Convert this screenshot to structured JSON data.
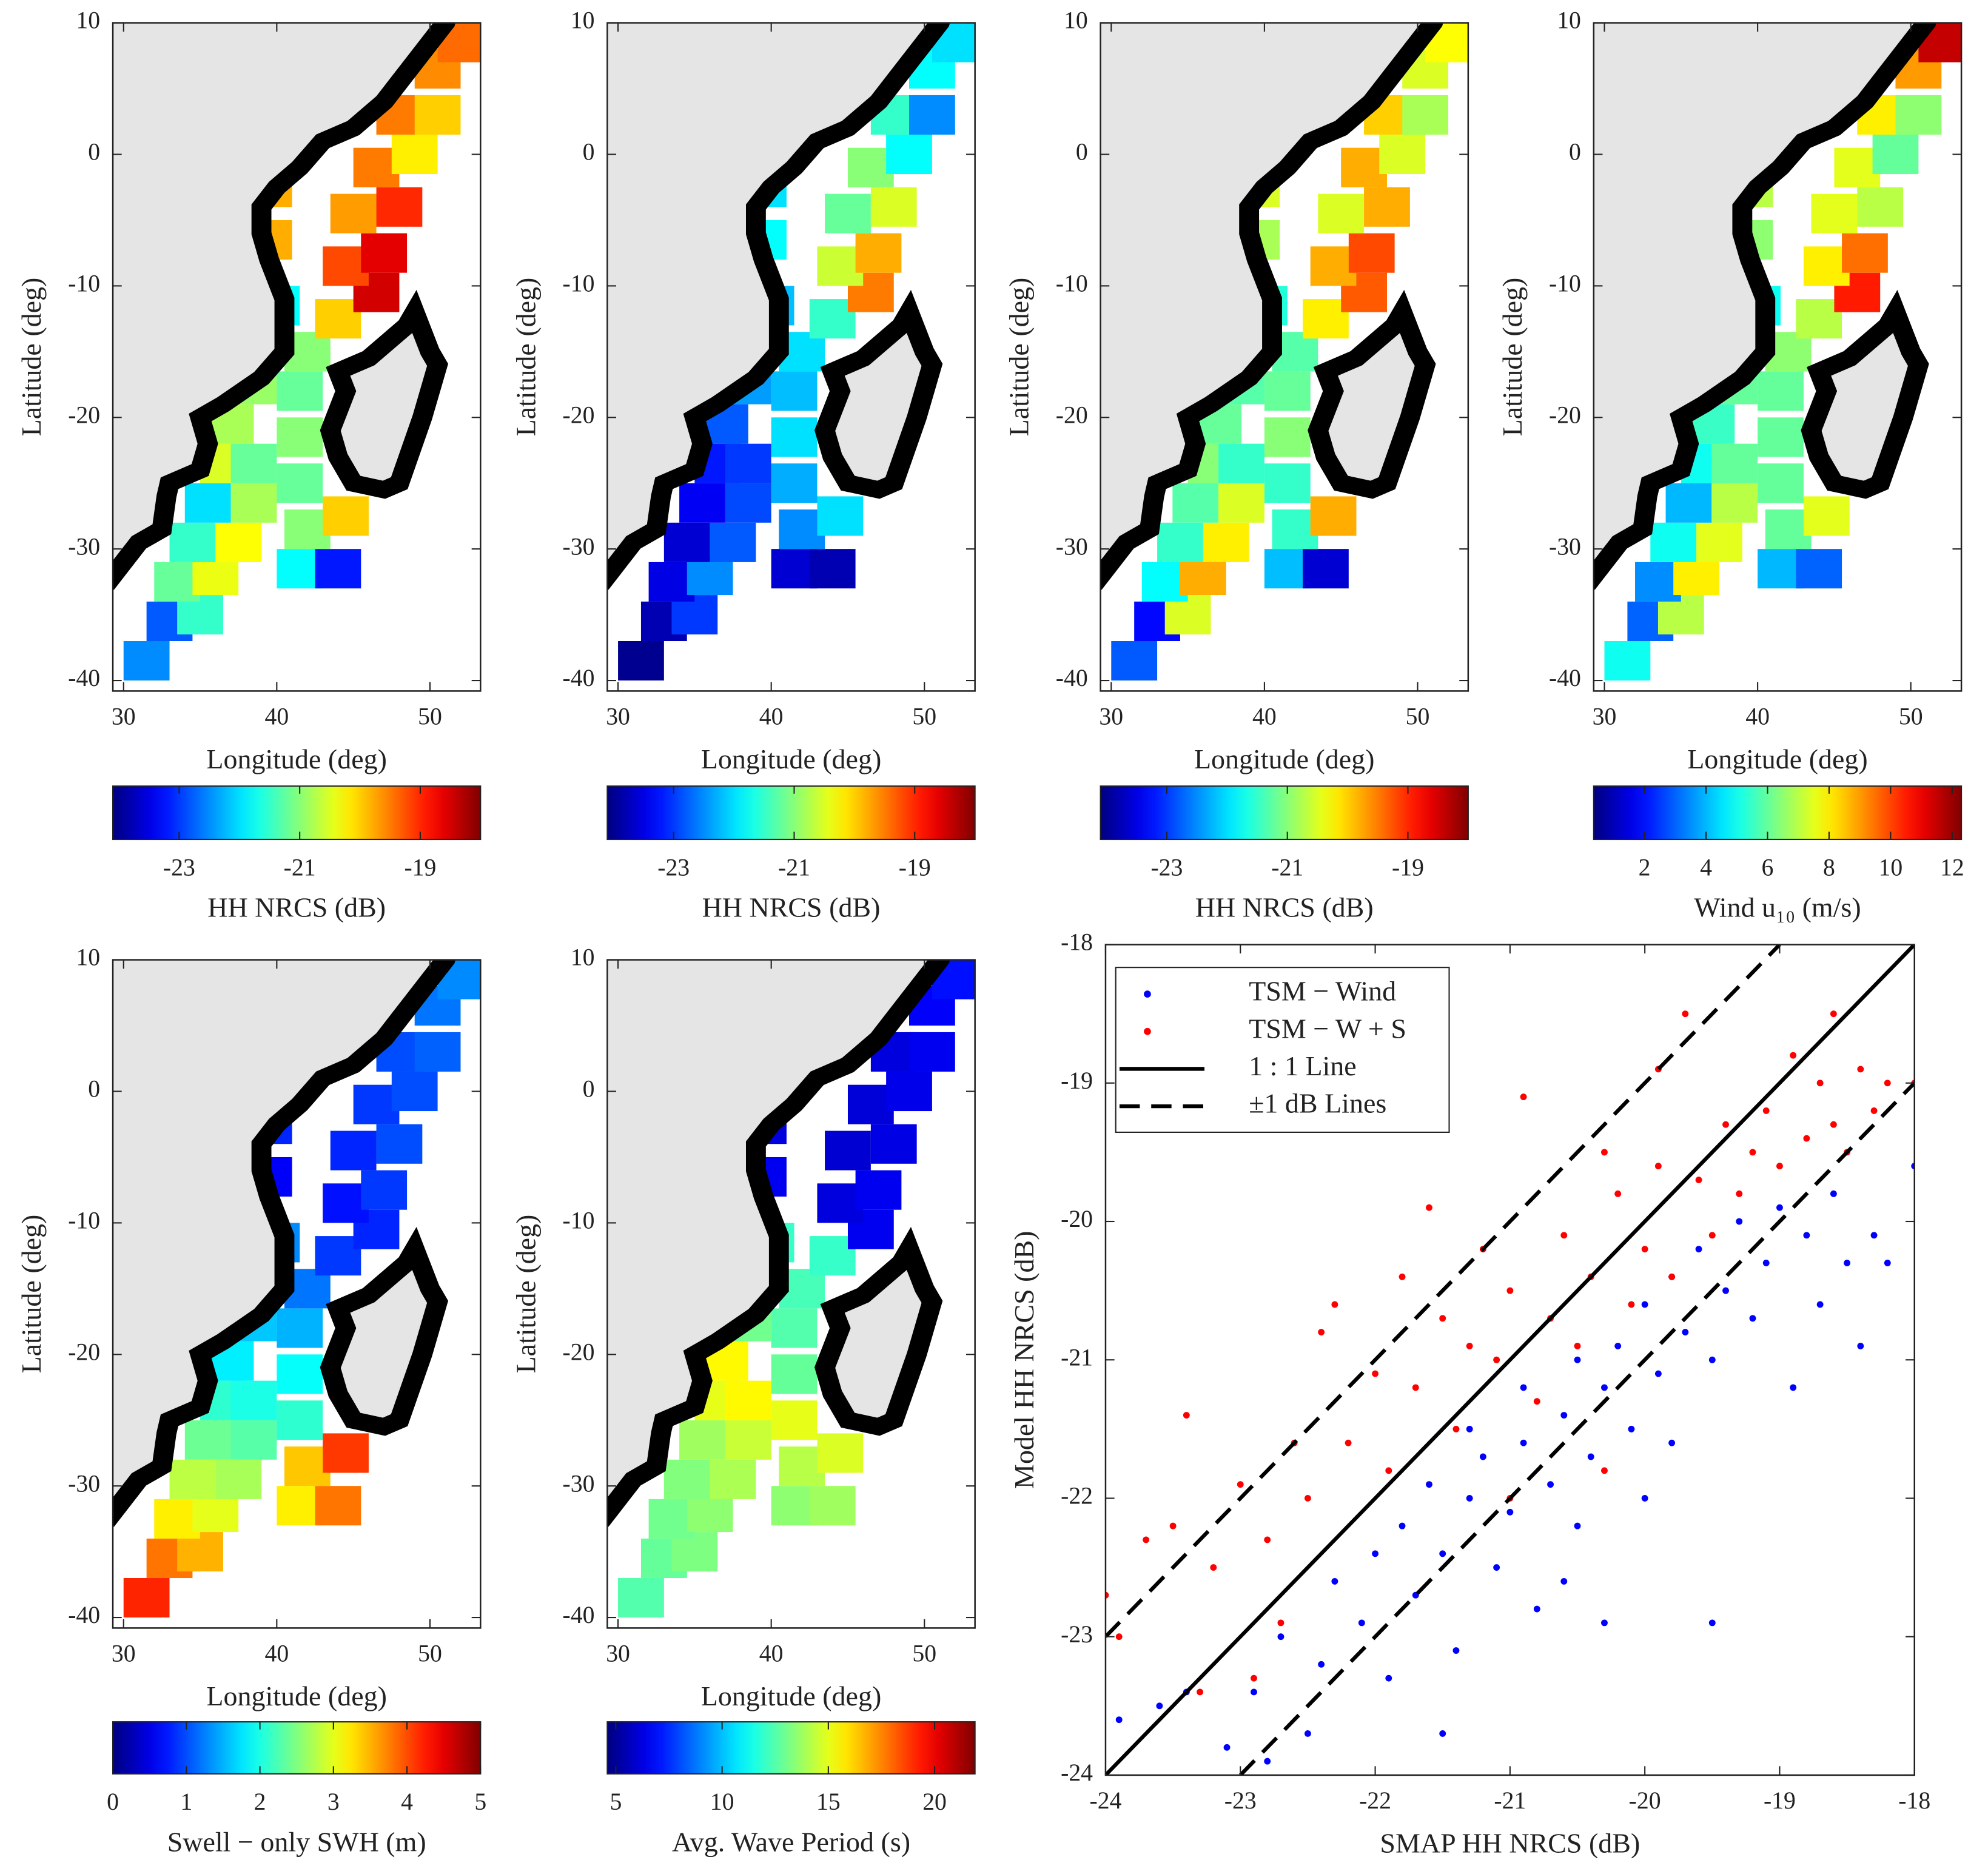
{
  "chart_data": [
    {
      "type": "heatmap",
      "xlabel": "Longitude (deg)",
      "ylabel": "Latitude (deg)",
      "xlim": [
        29.3,
        53.3
      ],
      "ylim": [
        -40.8,
        10
      ],
      "xticks": [
        30,
        40,
        50
      ],
      "yticks": [
        -40,
        -30,
        -20,
        -10,
        0,
        10
      ],
      "colormap": "jet",
      "x": [
        31.5,
        33,
        35,
        33.5,
        36,
        34.5,
        37.5,
        35.5,
        38.5,
        36.5,
        38.5,
        37,
        38.5,
        39.5,
        40,
        37.5,
        39.5,
        37.5,
        39.5,
        41.5,
        44,
        42,
        44.5,
        41.5,
        41.5,
        41.5,
        42,
        44,
        46.5,
        44.5,
        47,
        45,
        48,
        46.5,
        49,
        48,
        50.5,
        50.5,
        52
      ],
      "y": [
        -38.5,
        -35.5,
        -35,
        -32.5,
        -32,
        -29.5,
        -29.5,
        -26.5,
        -26.5,
        -23.5,
        -23.5,
        -20.5,
        -17.5,
        -14.5,
        -11.5,
        -6.5,
        -6.5,
        -2.5,
        -2.5,
        -31.5,
        -31.5,
        -28.5,
        -27.5,
        -25,
        -21.5,
        -18,
        -15,
        -12.5,
        -10.5,
        -8.5,
        -7.5,
        -4.5,
        -4,
        -1,
        0,
        3,
        3,
        6.5,
        8.5
      ],
      "values": [
        -22.5,
        -22.8,
        -21.5,
        -21.2,
        -20.4,
        -21.5,
        -20.3,
        -22.0,
        -20.8,
        -20.5,
        -21.2,
        -20.8,
        -20.9,
        -21.5,
        -21.8,
        -19.6,
        -19.8,
        -19.5,
        -19.8,
        -21.8,
        -23.2,
        -21.0,
        -20.0,
        -21.2,
        -21.0,
        -21.2,
        -21.0,
        -20.0,
        -18.5,
        -19.2,
        -18.6,
        -19.7,
        -19.0,
        -19.5,
        -20.2,
        -19.5,
        -20.0,
        -19.6,
        -19.4
      ],
      "colorbar": {
        "label": "HH NRCS (dB)",
        "clim": [
          -24.1,
          -18
        ],
        "ticks": [
          -23,
          -21,
          -19
        ]
      }
    },
    {
      "type": "heatmap",
      "xlabel": "Longitude (deg)",
      "ylabel": "Latitude (deg)",
      "xlim": [
        29.3,
        53.3
      ],
      "ylim": [
        -40.8,
        10
      ],
      "xticks": [
        30,
        40,
        50
      ],
      "yticks": [
        -40,
        -30,
        -20,
        -10,
        0,
        10
      ],
      "colormap": "jet",
      "x": [
        31.5,
        33,
        35,
        33.5,
        36,
        34.5,
        37.5,
        35.5,
        38.5,
        36.5,
        38.5,
        37,
        38.5,
        39.5,
        40,
        37.5,
        39.5,
        37.5,
        39.5,
        41.5,
        44,
        42,
        44.5,
        41.5,
        41.5,
        41.5,
        42,
        44,
        46.5,
        44.5,
        47,
        45,
        48,
        46.5,
        49,
        48,
        50.5,
        50.5,
        52
      ],
      "y": [
        -38.5,
        -35.5,
        -35,
        -32.5,
        -32,
        -29.5,
        -29.5,
        -26.5,
        -26.5,
        -23.5,
        -23.5,
        -20.5,
        -17.5,
        -14.5,
        -11.5,
        -6.5,
        -6.5,
        -2.5,
        -2.5,
        -31.5,
        -31.5,
        -28.5,
        -27.5,
        -25,
        -21.5,
        -18,
        -15,
        -12.5,
        -10.5,
        -8.5,
        -7.5,
        -4.5,
        -4,
        -1,
        0,
        3,
        3,
        6.5,
        8.5
      ],
      "values": [
        -24,
        -23.8,
        -23.0,
        -23.5,
        -22.5,
        -23.6,
        -22.8,
        -23.4,
        -22.9,
        -23.2,
        -23.0,
        -22.8,
        -22.4,
        -22.5,
        -22.2,
        -21.5,
        -21.8,
        -21.8,
        -22.0,
        -23.6,
        -23.8,
        -22.5,
        -22.0,
        -22.3,
        -22.0,
        -22.2,
        -22.0,
        -21.5,
        -19.5,
        -20.6,
        -19.8,
        -21.2,
        -20.5,
        -21.0,
        -21.8,
        -21.5,
        -22.5,
        -21.8,
        -22.0
      ],
      "colorbar": {
        "label": "HH NRCS (dB)",
        "clim": [
          -24.1,
          -18
        ],
        "ticks": [
          -23,
          -21,
          -19
        ]
      }
    },
    {
      "type": "heatmap",
      "xlabel": "Longitude (deg)",
      "ylabel": "Latitude (deg)",
      "xlim": [
        29.3,
        53.3
      ],
      "ylim": [
        -40.8,
        10
      ],
      "xticks": [
        30,
        40,
        50
      ],
      "yticks": [
        -40,
        -30,
        -20,
        -10,
        0,
        10
      ],
      "colormap": "jet",
      "x": [
        31.5,
        33,
        35,
        33.5,
        36,
        34.5,
        37.5,
        35.5,
        38.5,
        36.5,
        38.5,
        37,
        38.5,
        39.5,
        40,
        37.5,
        39.5,
        37.5,
        39.5,
        41.5,
        44,
        42,
        44.5,
        41.5,
        41.5,
        41.5,
        42,
        44,
        46.5,
        44.5,
        47,
        45,
        48,
        46.5,
        49,
        48,
        50.5,
        50.5,
        52
      ],
      "y": [
        -38.5,
        -35.5,
        -35,
        -32.5,
        -32,
        -29.5,
        -29.5,
        -26.5,
        -26.5,
        -23.5,
        -23.5,
        -20.5,
        -17.5,
        -14.5,
        -11.5,
        -6.5,
        -6.5,
        -2.5,
        -2.5,
        -31.5,
        -31.5,
        -28.5,
        -27.5,
        -25,
        -21.5,
        -18,
        -15,
        -12.5,
        -10.5,
        -8.5,
        -7.5,
        -4.5,
        -4,
        -1,
        0,
        3,
        3,
        6.5,
        8.5
      ],
      "values": [
        -22.8,
        -23.3,
        -20.5,
        -21.8,
        -19.8,
        -21.5,
        -20.2,
        -21.3,
        -20.5,
        -21.0,
        -21.5,
        -21.2,
        -21.3,
        -21.5,
        -21.6,
        -20.5,
        -20.8,
        -19.8,
        -20.5,
        -22.2,
        -23.6,
        -21.5,
        -19.8,
        -21.5,
        -21.0,
        -21.2,
        -21.3,
        -20.2,
        -19.3,
        -19.8,
        -19.2,
        -20.5,
        -19.8,
        -19.8,
        -20.5,
        -20.0,
        -20.8,
        -20.5,
        -20.3
      ],
      "colorbar": {
        "label": "HH NRCS (dB)",
        "clim": [
          -24.1,
          -18
        ],
        "ticks": [
          -23,
          -21,
          -19
        ]
      }
    },
    {
      "type": "heatmap",
      "xlabel": "Longitude (deg)",
      "ylabel": "Latitude (deg)",
      "xlim": [
        29.3,
        53.3
      ],
      "ylim": [
        -40.8,
        10
      ],
      "xticks": [
        30,
        40,
        50
      ],
      "yticks": [
        -40,
        -30,
        -20,
        -10,
        0,
        10
      ],
      "colormap": "jet",
      "x": [
        31.5,
        33,
        35,
        33.5,
        36,
        34.5,
        37.5,
        35.5,
        38.5,
        36.5,
        38.5,
        37,
        38.5,
        39.5,
        40,
        37.5,
        39.5,
        37.5,
        39.5,
        41.5,
        44,
        42,
        44.5,
        41.5,
        41.5,
        41.5,
        42,
        44,
        46.5,
        44.5,
        47,
        45,
        48,
        46.5,
        49,
        48,
        50.5,
        50.5,
        52
      ],
      "y": [
        -38.5,
        -35.5,
        -35,
        -32.5,
        -32,
        -29.5,
        -29.5,
        -26.5,
        -26.5,
        -23.5,
        -23.5,
        -20.5,
        -17.5,
        -14.5,
        -11.5,
        -6.5,
        -6.5,
        -2.5,
        -2.5,
        -31.5,
        -31.5,
        -28.5,
        -27.5,
        -25,
        -21.5,
        -18,
        -15,
        -12.5,
        -10.5,
        -8.5,
        -7.5,
        -4.5,
        -4,
        -1,
        0,
        3,
        3,
        6.5,
        8.5
      ],
      "values": [
        5,
        3,
        7,
        3.5,
        8,
        5,
        7.5,
        4,
        7,
        5,
        6,
        5.5,
        6,
        5.5,
        5,
        7,
        6.5,
        8,
        7,
        4,
        3,
        6,
        7.5,
        6,
        6,
        6,
        6.5,
        7,
        10.5,
        8,
        9.5,
        7.5,
        7,
        7.5,
        6,
        8,
        6.5,
        9,
        11.5
      ],
      "colorbar": {
        "label": "Wind u₁₀ (m/s)",
        "clim": [
          0.35,
          12.3
        ],
        "ticks": [
          2,
          4,
          6,
          8,
          10,
          12
        ]
      }
    },
    {
      "type": "heatmap",
      "xlabel": "Longitude (deg)",
      "ylabel": "Latitude (deg)",
      "xlim": [
        29.3,
        53.3
      ],
      "ylim": [
        -40.8,
        10
      ],
      "xticks": [
        30,
        40,
        50
      ],
      "yticks": [
        -40,
        -30,
        -20,
        -10,
        0,
        10
      ],
      "colormap": "jet",
      "x": [
        31.5,
        33,
        35,
        33.5,
        36,
        34.5,
        37.5,
        35.5,
        38.5,
        36.5,
        38.5,
        37,
        38.5,
        39.5,
        40,
        37.5,
        39.5,
        37.5,
        39.5,
        41.5,
        44,
        42,
        44.5,
        41.5,
        41.5,
        41.5,
        42,
        44,
        46.5,
        44.5,
        47,
        45,
        48,
        46.5,
        49,
        48,
        50.5,
        50.5,
        52
      ],
      "y": [
        -38.5,
        -35.5,
        -35,
        -32.5,
        -32,
        -29.5,
        -29.5,
        -26.5,
        -26.5,
        -23.5,
        -23.5,
        -20.5,
        -17.5,
        -14.5,
        -11.5,
        -6.5,
        -6.5,
        -2.5,
        -2.5,
        -31.5,
        -31.5,
        -28.5,
        -27.5,
        -25,
        -21.5,
        -18,
        -15,
        -12.5,
        -10.5,
        -8.5,
        -7.5,
        -4.5,
        -4,
        -1,
        0,
        3,
        3,
        6.5,
        8.5
      ],
      "values": [
        4.2,
        3.8,
        3.5,
        3.2,
        3.0,
        2.8,
        2.7,
        2.4,
        2.3,
        2.1,
        2.0,
        1.8,
        1.6,
        1.5,
        1.3,
        0.5,
        0.6,
        0.7,
        0.8,
        3.2,
        3.8,
        3.4,
        4.1,
        2.1,
        1.9,
        1.5,
        1.2,
        0.9,
        0.8,
        0.7,
        0.9,
        0.8,
        1.0,
        0.9,
        1.0,
        1.0,
        1.1,
        1.2,
        1.3
      ],
      "colorbar": {
        "label": "Swell − only SWH (m)",
        "clim": [
          0,
          5
        ],
        "ticks": [
          0,
          1,
          2,
          3,
          4,
          5
        ]
      }
    },
    {
      "type": "heatmap",
      "xlabel": "Longitude (deg)",
      "ylabel": "Latitude (deg)",
      "xlim": [
        29.3,
        53.3
      ],
      "ylim": [
        -40.8,
        10
      ],
      "xticks": [
        30,
        40,
        50
      ],
      "yticks": [
        -40,
        -30,
        -20,
        -10,
        0,
        10
      ],
      "colormap": "jet",
      "x": [
        31.5,
        33,
        35,
        33.5,
        36,
        34.5,
        37.5,
        35.5,
        38.5,
        36.5,
        38.5,
        37,
        38.5,
        39.5,
        40,
        37.5,
        39.5,
        37.5,
        39.5,
        41.5,
        44,
        42,
        44.5,
        41.5,
        41.5,
        41.5,
        42,
        44,
        46.5,
        44.5,
        47,
        45,
        48,
        46.5,
        49,
        48,
        50.5,
        50.5,
        52
      ],
      "y": [
        -38.5,
        -35.5,
        -35,
        -32.5,
        -32,
        -29.5,
        -29.5,
        -26.5,
        -26.5,
        -23.5,
        -23.5,
        -20.5,
        -17.5,
        -14.5,
        -11.5,
        -6.5,
        -6.5,
        -2.5,
        -2.5,
        -31.5,
        -31.5,
        -28.5,
        -27.5,
        -25,
        -21.5,
        -18,
        -15,
        -12.5,
        -10.5,
        -8.5,
        -7.5,
        -4.5,
        -4,
        -1,
        0,
        3,
        3,
        6.5,
        8.5
      ],
      "values": [
        12.5,
        12.8,
        13.2,
        13.0,
        13.5,
        13.3,
        14,
        13.8,
        14.5,
        15,
        15.5,
        15.5,
        13,
        12.5,
        12,
        6,
        6.5,
        6,
        6.2,
        13.5,
        13.8,
        14.2,
        14.8,
        15,
        12.8,
        12.5,
        12.3,
        12,
        6.5,
        6.2,
        6.5,
        6,
        6.3,
        6.1,
        6.4,
        6.2,
        6.5,
        6.7,
        7
      ],
      "colorbar": {
        "label": "Avg. Wave Period (s)",
        "clim": [
          4.6,
          21.9
        ],
        "ticks": [
          5,
          10,
          15,
          20
        ]
      }
    },
    {
      "type": "scatter",
      "xlabel": "SMAP HH NRCS (dB)",
      "ylabel": "Model HH NRCS (dB)",
      "xlim": [
        -24,
        -18
      ],
      "ylim": [
        -24,
        -18
      ],
      "xticks": [
        -24,
        -23,
        -22,
        -21,
        -20,
        -19,
        -18
      ],
      "yticks": [
        -24,
        -23,
        -22,
        -21,
        -20,
        -19,
        -18
      ],
      "legend": "upper left",
      "series": [
        {
          "name": "TSM − Wind",
          "kind": "points",
          "color": "#0000ff",
          "x": [
            -23.9,
            -23.6,
            -23.4,
            -23.1,
            -22.9,
            -22.7,
            -22.5,
            -22.4,
            -22.3,
            -22.1,
            -22.0,
            -21.9,
            -21.8,
            -21.7,
            -21.6,
            -21.5,
            -21.4,
            -21.3,
            -21.2,
            -21.1,
            -21.0,
            -20.9,
            -20.8,
            -20.7,
            -20.6,
            -20.5,
            -20.5,
            -20.4,
            -20.3,
            -20.3,
            -20.2,
            -20.1,
            -20.0,
            -20.0,
            -19.9,
            -19.8,
            -19.8,
            -19.7,
            -19.6,
            -19.5,
            -19.5,
            -19.4,
            -19.3,
            -19.2,
            -19.1,
            -19.0,
            -18.9,
            -18.8,
            -18.7,
            -18.6,
            -18.5,
            -18.4,
            -18.3,
            -18.2,
            -18.0,
            -20.6,
            -21.5,
            -22.8,
            -20.9,
            -21.3
          ],
          "values": [
            -23.6,
            -23.5,
            -23.4,
            -23.8,
            -23.4,
            -23.0,
            -23.7,
            -23.2,
            -22.6,
            -22.9,
            -22.4,
            -23.3,
            -22.2,
            -22.7,
            -21.9,
            -22.4,
            -23.1,
            -22.0,
            -21.7,
            -22.5,
            -22.1,
            -21.6,
            -22.8,
            -21.9,
            -21.4,
            -22.2,
            -21.0,
            -21.7,
            -21.2,
            -22.9,
            -20.9,
            -21.5,
            -20.6,
            -22.0,
            -21.1,
            -20.4,
            -21.6,
            -20.8,
            -20.2,
            -21.0,
            -22.9,
            -20.5,
            -20.0,
            -20.7,
            -20.3,
            -19.9,
            -21.2,
            -20.1,
            -20.6,
            -19.8,
            -20.3,
            -20.9,
            -20.1,
            -20.3,
            -19.6,
            -22.6,
            -23.7,
            -23.9,
            -21.2,
            -21.5
          ]
        },
        {
          "name": "TSM − W + S",
          "kind": "points",
          "color": "#ff0000",
          "x": [
            -24.0,
            -23.9,
            -23.7,
            -23.5,
            -23.4,
            -23.2,
            -23.0,
            -22.9,
            -22.8,
            -22.6,
            -22.5,
            -22.4,
            -22.2,
            -22.0,
            -21.9,
            -21.8,
            -21.7,
            -21.5,
            -21.4,
            -21.3,
            -21.2,
            -21.1,
            -21.0,
            -20.9,
            -20.8,
            -20.7,
            -20.6,
            -20.5,
            -20.4,
            -20.3,
            -20.2,
            -20.1,
            -20.0,
            -19.9,
            -19.8,
            -19.7,
            -19.6,
            -19.5,
            -19.4,
            -19.3,
            -19.2,
            -19.1,
            -19.0,
            -18.9,
            -18.8,
            -18.7,
            -18.6,
            -18.5,
            -18.4,
            -18.3,
            -18.2,
            -18.0,
            -18.6,
            -19.9,
            -21.6,
            -22.3,
            -23.3,
            -20.3,
            -21.0,
            -22.7
          ],
          "values": [
            -22.7,
            -23.0,
            -22.3,
            -22.2,
            -21.4,
            -22.5,
            -21.9,
            -23.3,
            -22.3,
            -21.6,
            -22.0,
            -20.8,
            -21.6,
            -21.1,
            -21.8,
            -20.4,
            -21.2,
            -20.7,
            -21.5,
            -20.9,
            -20.2,
            -21.0,
            -20.5,
            -19.1,
            -21.3,
            -20.7,
            -20.1,
            -20.9,
            -20.4,
            -21.8,
            -19.8,
            -20.6,
            -20.2,
            -19.6,
            -20.4,
            -18.5,
            -19.7,
            -20.1,
            -19.3,
            -19.8,
            -19.5,
            -19.2,
            -19.6,
            -18.8,
            -19.4,
            -19.0,
            -19.3,
            -19.5,
            -18.9,
            -19.2,
            -19.0,
            -19.0,
            -18.5,
            -18.9,
            -19.9,
            -20.6,
            -23.4,
            -19.5,
            -22.0,
            -22.9
          ]
        },
        {
          "name": "1 : 1 Line",
          "kind": "line",
          "color": "#000000",
          "dash": false,
          "x": [
            -24,
            -18
          ],
          "values": [
            -24,
            -18
          ]
        },
        {
          "name": "±1 dB Lines",
          "kind": "line",
          "color": "#000000",
          "dash": true,
          "x": [
            -24,
            -19,
            null,
            -23,
            -18
          ],
          "values": [
            -23,
            -18,
            null,
            -24,
            -19
          ]
        }
      ]
    }
  ]
}
